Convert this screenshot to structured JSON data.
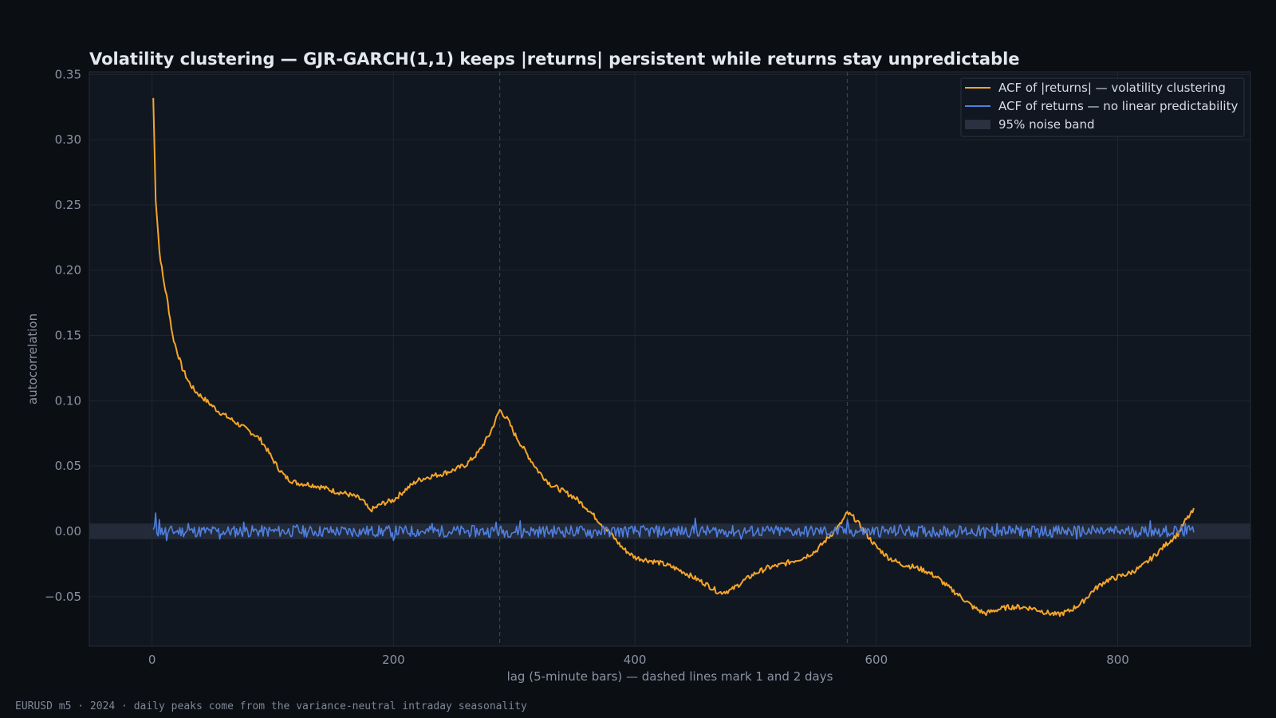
{
  "chart_data": {
    "type": "line",
    "title": "Volatility clustering — GJR-GARCH(1,1) keeps |returns| persistent while returns stay unpredictable",
    "xlabel": "lag (5-minute bars) — dashed lines mark 1 and 2 days",
    "ylabel": "autocorrelation",
    "xlim": [
      -52,
      910
    ],
    "ylim": [
      -0.088,
      0.352
    ],
    "x_ticks": [
      0,
      200,
      400,
      600,
      800
    ],
    "y_ticks": [
      -0.05,
      0.0,
      0.05,
      0.1,
      0.15,
      0.2,
      0.25,
      0.3,
      0.35
    ],
    "y_tick_labels": [
      "−0.05",
      "0.00",
      "0.05",
      "0.10",
      "0.15",
      "0.20",
      "0.25",
      "0.30",
      "0.35"
    ],
    "grid": true,
    "legend_position": "top-right",
    "reference_lines_x": [
      288,
      576
    ],
    "noise_band": [
      -0.006,
      0.006
    ],
    "series": [
      {
        "name": "ACF of |returns| — volatility clustering",
        "color": "#f5a52a",
        "points": [
          [
            1,
            0.332
          ],
          [
            3,
            0.255
          ],
          [
            6,
            0.215
          ],
          [
            9,
            0.195
          ],
          [
            13,
            0.175
          ],
          [
            17,
            0.15
          ],
          [
            20,
            0.14
          ],
          [
            25,
            0.125
          ],
          [
            30,
            0.115
          ],
          [
            35,
            0.108
          ],
          [
            40,
            0.104
          ],
          [
            45,
            0.1
          ],
          [
            50,
            0.096
          ],
          [
            55,
            0.092
          ],
          [
            60,
            0.089
          ],
          [
            65,
            0.086
          ],
          [
            70,
            0.083
          ],
          [
            75,
            0.08
          ],
          [
            80,
            0.077
          ],
          [
            85,
            0.074
          ],
          [
            90,
            0.07
          ],
          [
            95,
            0.063
          ],
          [
            100,
            0.055
          ],
          [
            105,
            0.048
          ],
          [
            110,
            0.042
          ],
          [
            115,
            0.039
          ],
          [
            120,
            0.037
          ],
          [
            130,
            0.036
          ],
          [
            140,
            0.034
          ],
          [
            150,
            0.031
          ],
          [
            160,
            0.029
          ],
          [
            170,
            0.026
          ],
          [
            175,
            0.023
          ],
          [
            180,
            0.016
          ],
          [
            185,
            0.018
          ],
          [
            190,
            0.021
          ],
          [
            200,
            0.024
          ],
          [
            210,
            0.032
          ],
          [
            220,
            0.039
          ],
          [
            230,
            0.042
          ],
          [
            240,
            0.044
          ],
          [
            250,
            0.047
          ],
          [
            260,
            0.051
          ],
          [
            270,
            0.06
          ],
          [
            280,
            0.075
          ],
          [
            288,
            0.093
          ],
          [
            295,
            0.085
          ],
          [
            300,
            0.075
          ],
          [
            310,
            0.06
          ],
          [
            320,
            0.046
          ],
          [
            330,
            0.036
          ],
          [
            340,
            0.031
          ],
          [
            350,
            0.026
          ],
          [
            360,
            0.018
          ],
          [
            370,
            0.008
          ],
          [
            380,
            -0.002
          ],
          [
            390,
            -0.013
          ],
          [
            400,
            -0.02
          ],
          [
            410,
            -0.022
          ],
          [
            420,
            -0.024
          ],
          [
            430,
            -0.027
          ],
          [
            440,
            -0.031
          ],
          [
            450,
            -0.036
          ],
          [
            460,
            -0.041
          ],
          [
            470,
            -0.047
          ],
          [
            480,
            -0.045
          ],
          [
            490,
            -0.038
          ],
          [
            500,
            -0.032
          ],
          [
            510,
            -0.028
          ],
          [
            520,
            -0.026
          ],
          [
            530,
            -0.023
          ],
          [
            540,
            -0.02
          ],
          [
            550,
            -0.015
          ],
          [
            560,
            -0.005
          ],
          [
            570,
            0.005
          ],
          [
            576,
            0.014
          ],
          [
            582,
            0.01
          ],
          [
            590,
            0.0
          ],
          [
            600,
            -0.012
          ],
          [
            610,
            -0.02
          ],
          [
            620,
            -0.025
          ],
          [
            630,
            -0.027
          ],
          [
            640,
            -0.03
          ],
          [
            650,
            -0.035
          ],
          [
            660,
            -0.043
          ],
          [
            670,
            -0.05
          ],
          [
            680,
            -0.058
          ],
          [
            690,
            -0.063
          ],
          [
            700,
            -0.06
          ],
          [
            710,
            -0.058
          ],
          [
            720,
            -0.058
          ],
          [
            730,
            -0.059
          ],
          [
            740,
            -0.062
          ],
          [
            750,
            -0.064
          ],
          [
            760,
            -0.061
          ],
          [
            770,
            -0.055
          ],
          [
            780,
            -0.045
          ],
          [
            790,
            -0.038
          ],
          [
            800,
            -0.035
          ],
          [
            810,
            -0.032
          ],
          [
            820,
            -0.027
          ],
          [
            830,
            -0.019
          ],
          [
            840,
            -0.01
          ],
          [
            850,
            -0.002
          ],
          [
            856,
            0.008
          ],
          [
            863,
            0.016
          ]
        ]
      },
      {
        "name": "ACF of returns — no linear predictability",
        "color": "#4f7fdf",
        "range": [
          1,
          863
        ],
        "spread": 0.0045,
        "spikes": [
          [
            3,
            0.014
          ],
          [
            6,
            0.009
          ],
          [
            12,
            -0.007
          ],
          [
            30,
            0.006
          ],
          [
            56,
            -0.006
          ],
          [
            76,
            0.007
          ],
          [
            120,
            0.005
          ],
          [
            200,
            -0.007
          ],
          [
            232,
            0.006
          ],
          [
            285,
            0.007
          ],
          [
            305,
            0.008
          ],
          [
            306,
            -0.005
          ],
          [
            364,
            -0.005
          ],
          [
            450,
            0.01
          ],
          [
            488,
            -0.006
          ],
          [
            576,
            0.009
          ],
          [
            620,
            0.005
          ],
          [
            690,
            -0.005
          ],
          [
            700,
            0.006
          ],
          [
            766,
            -0.006
          ],
          [
            827,
            0.008
          ],
          [
            856,
            0.006
          ],
          [
            864,
            -0.006
          ]
        ]
      }
    ],
    "legend": [
      {
        "label": "ACF of |returns| — volatility clustering",
        "kind": "line",
        "color": "#f5a52a"
      },
      {
        "label": "ACF of returns — no linear predictability",
        "kind": "line",
        "color": "#4f7fdf"
      },
      {
        "label": "95% noise band",
        "kind": "patch",
        "color": "#2a3140"
      }
    ]
  },
  "footnote": "EURUSD m5 · 2024 · daily peaks come from the variance-neutral intraday seasonality"
}
